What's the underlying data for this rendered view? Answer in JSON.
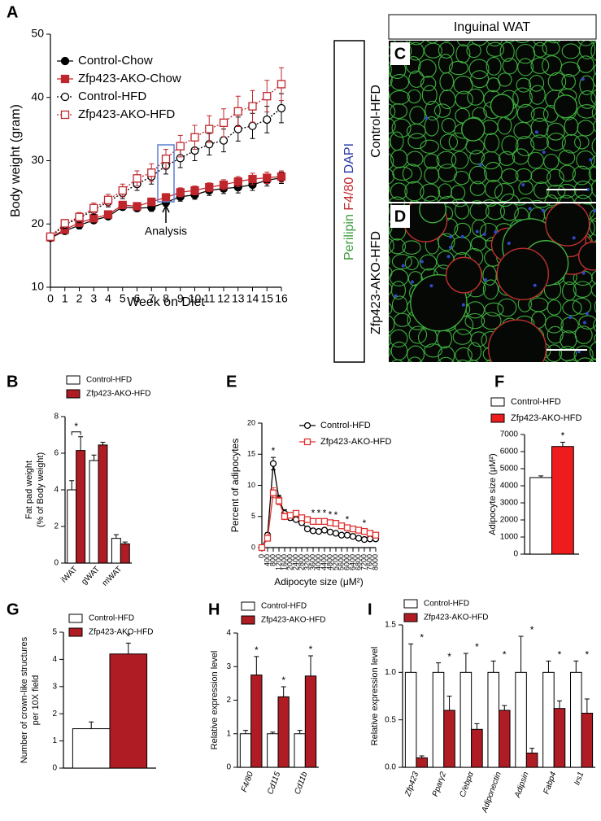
{
  "chart_data": [
    {
      "panel": "A",
      "type": "line",
      "xlabel": "Week on Diet",
      "ylabel": "Body weight (gram)",
      "x": [
        0,
        1,
        2,
        3,
        4,
        5,
        6,
        7,
        8,
        9,
        10,
        11,
        12,
        13,
        14,
        15,
        16
      ],
      "xlim": [
        0,
        16
      ],
      "xticks": [
        0,
        1,
        2,
        3,
        4,
        5,
        6,
        7,
        8,
        9,
        10,
        11,
        12,
        13,
        14,
        15,
        16
      ],
      "ylim": [
        10,
        50
      ],
      "yticks": [
        10,
        20,
        30,
        40,
        50
      ],
      "series": [
        {
          "name": "Control-Chow",
          "color": "#000000",
          "marker": "circle",
          "filled": true,
          "dashed": false,
          "values": [
            17.8,
            18.9,
            19.8,
            20.6,
            21.2,
            22.7,
            22.5,
            22.6,
            23.4,
            24.3,
            24.6,
            25.3,
            25.6,
            25.8,
            26.2,
            26.9,
            27.3
          ],
          "errors": [
            0.4,
            0.5,
            0.6,
            0.5,
            0.5,
            0.5,
            0.5,
            0.6,
            0.6,
            0.7,
            0.7,
            0.8,
            0.8,
            0.9,
            0.9,
            0.9,
            0.9
          ]
        },
        {
          "name": "Zfp423-AKO-Chow",
          "color": "#c0272d",
          "marker": "square",
          "filled": true,
          "dashed": false,
          "values": [
            17.9,
            19.1,
            20.2,
            20.9,
            21.5,
            23.0,
            22.8,
            23.5,
            24.2,
            25.0,
            25.3,
            25.8,
            26.2,
            26.7,
            27.1,
            27.3,
            27.5
          ],
          "errors": [
            0.4,
            0.5,
            0.6,
            0.5,
            0.5,
            0.5,
            0.5,
            0.6,
            0.6,
            0.7,
            0.7,
            0.7,
            0.8,
            0.8,
            0.9,
            0.9,
            0.9
          ]
        },
        {
          "name": "Control-HFD",
          "color": "#000000",
          "marker": "circle",
          "filled": false,
          "dashed": true,
          "values": [
            17.9,
            19.9,
            20.9,
            22.2,
            23.5,
            24.9,
            26.3,
            27.5,
            29.2,
            30.4,
            31.6,
            32.6,
            33.2,
            35.0,
            35.5,
            36.5,
            38.3
          ],
          "errors": [
            0.5,
            0.6,
            0.7,
            0.7,
            0.8,
            0.9,
            1.0,
            1.2,
            1.3,
            1.5,
            1.6,
            1.7,
            1.8,
            1.9,
            2.0,
            2.1,
            2.3
          ]
        },
        {
          "name": "Zfp423-AKO-HFD",
          "color": "#c0272d",
          "marker": "square",
          "filled": false,
          "dashed": true,
          "values": [
            18.0,
            20.1,
            21.1,
            22.5,
            23.8,
            25.3,
            27.2,
            28.1,
            30.3,
            32.3,
            33.7,
            35.0,
            36.0,
            37.8,
            38.6,
            40.2,
            42.1
          ],
          "errors": [
            0.5,
            0.6,
            0.7,
            0.8,
            0.9,
            1.0,
            1.2,
            1.4,
            1.5,
            1.7,
            1.9,
            2.1,
            2.2,
            2.4,
            2.5,
            2.5,
            2.6
          ]
        }
      ],
      "annotation": {
        "text": "Analysis",
        "x": 8
      }
    },
    {
      "panel": "B",
      "type": "bar",
      "ylabel": [
        "Fat pad weight",
        "(% of Body weight)"
      ],
      "categories": [
        "iWAT",
        "gWAT",
        "mWAT"
      ],
      "ylim": [
        0,
        8
      ],
      "yticks": [
        0,
        2,
        4,
        6,
        8
      ],
      "series": [
        {
          "name": "Control-HFD",
          "color": "#ffffff",
          "values": [
            4.0,
            5.6,
            1.35
          ],
          "errors": [
            0.5,
            0.3,
            0.2
          ]
        },
        {
          "name": "Zfp423-AKO-HFD",
          "color": "#b01c24",
          "values": [
            6.15,
            6.45,
            1.05
          ],
          "errors": [
            0.75,
            0.15,
            0.1
          ]
        }
      ],
      "significance": [
        "*",
        null,
        null
      ]
    },
    {
      "panel": "E",
      "type": "line",
      "xlabel": "Adipocyte size (μM²)",
      "ylabel": "Percent of adipocytes",
      "x": [
        0,
        400,
        800,
        1200,
        1600,
        2000,
        2400,
        2800,
        3200,
        3600,
        4000,
        4400,
        4800,
        5200,
        5600,
        6000,
        6400,
        6800,
        7200,
        7600,
        8000
      ],
      "xlim": [
        0,
        8000
      ],
      "xticks": [
        0,
        400,
        800,
        1200,
        1600,
        2000,
        2400,
        2800,
        3200,
        3600,
        4000,
        4400,
        4800,
        5200,
        5600,
        6000,
        6400,
        6800,
        7200,
        7600,
        8000
      ],
      "ylim": [
        0,
        20
      ],
      "yticks": [
        0,
        5,
        10,
        15,
        20
      ],
      "series": [
        {
          "name": "Control-HFD",
          "color": "#000000",
          "marker": "circle",
          "filled": false,
          "dashed": false,
          "values": [
            0,
            2,
            13.5,
            7.8,
            5.5,
            4.8,
            4.5,
            4.0,
            3.0,
            2.7,
            2.6,
            2.8,
            2.5,
            2.3,
            2.0,
            2.0,
            1.8,
            1.5,
            1.3,
            1.4,
            1.4
          ],
          "errors": [
            0,
            0.4,
            1.0,
            0.6,
            0.6,
            0.4,
            0.3,
            0.3,
            0.3,
            0.3,
            0.3,
            0.3,
            0.3,
            0.3,
            0.3,
            0.3,
            0.3,
            0.3,
            0.3,
            0.3,
            0.3
          ]
        },
        {
          "name": "Zfp423-AKO-HFD",
          "color": "#e0302e",
          "marker": "square",
          "filled": false,
          "dashed": false,
          "values": [
            0,
            1.5,
            8.8,
            7.5,
            5.0,
            5.2,
            5.5,
            4.8,
            4.5,
            4.2,
            4.2,
            4.2,
            4.0,
            3.9,
            3.5,
            3.2,
            3.0,
            2.8,
            2.6,
            2.3,
            2.0
          ],
          "errors": [
            0,
            0.4,
            0.8,
            0.6,
            0.5,
            0.4,
            0.3,
            0.3,
            0.3,
            0.3,
            0.3,
            0.3,
            0.3,
            0.3,
            0.3,
            0.3,
            0.3,
            0.3,
            0.3,
            0.3,
            0.3
          ]
        }
      ],
      "significance": [
        {
          "x": 800,
          "label": "*"
        },
        {
          "x": 3600,
          "label": "*"
        },
        {
          "x": 4000,
          "label": "*"
        },
        {
          "x": 4400,
          "label": "*"
        },
        {
          "x": 4800,
          "label": "*"
        },
        {
          "x": 5200,
          "label": "*"
        },
        {
          "x": 6000,
          "label": "*"
        },
        {
          "x": 7200,
          "label": "*"
        }
      ]
    },
    {
      "panel": "F",
      "type": "bar",
      "ylabel": "Adipocyte size (μM²)",
      "categories": [
        null
      ],
      "ylim": [
        0,
        7000
      ],
      "yticks": [
        0,
        1000,
        2000,
        3000,
        4000,
        5000,
        6000,
        7000
      ],
      "series": [
        {
          "name": "Control-HFD",
          "color": "#ffffff",
          "values": [
            4480
          ],
          "errors": [
            100
          ]
        },
        {
          "name": "Zfp423-AKO-HFD",
          "color": "#ee1c1c",
          "values": [
            6300
          ],
          "errors": [
            250
          ]
        }
      ],
      "significance": [
        "*"
      ]
    },
    {
      "panel": "G",
      "type": "bar",
      "ylabel": [
        "Number of crown-like structures",
        "per 10X field"
      ],
      "categories": [
        null
      ],
      "ylim": [
        0,
        5
      ],
      "yticks": [
        0,
        1,
        2,
        3,
        4,
        5
      ],
      "series": [
        {
          "name": "Control-HFD",
          "color": "#ffffff",
          "values": [
            1.45
          ],
          "errors": [
            0.25
          ]
        },
        {
          "name": "Zfp423-AKO-HFD",
          "color": "#b01c24",
          "values": [
            4.2
          ],
          "errors": [
            0.4
          ]
        }
      ],
      "significance": [
        "*"
      ]
    },
    {
      "panel": "H",
      "type": "bar",
      "ylabel": "Relative expression level",
      "categories": [
        "F4/80",
        "Cd115",
        "Cd11b"
      ],
      "ylim": [
        0,
        4
      ],
      "yticks": [
        0,
        1,
        2,
        3,
        4
      ],
      "series": [
        {
          "name": "Control-HFD",
          "color": "#ffffff",
          "values": [
            1.0,
            1.0,
            1.0
          ],
          "errors": [
            0.1,
            0.05,
            0.1
          ]
        },
        {
          "name": "Zfp423-AKO-HFD",
          "color": "#b01c24",
          "values": [
            2.75,
            2.1,
            2.72
          ],
          "errors": [
            0.55,
            0.3,
            0.6
          ]
        }
      ],
      "significance": [
        "*",
        "*",
        "*"
      ]
    },
    {
      "panel": "I",
      "type": "bar",
      "ylabel": "Relative expression level",
      "categories": [
        "Zfp423",
        "Pparγ2",
        "C/ebpα",
        "Adiponectin",
        "Adipsin",
        "Fabp4",
        "Irs1"
      ],
      "ylim": [
        0,
        1.5
      ],
      "yticks": [
        {
          "value": 0,
          "label": "0.0"
        },
        0.5,
        {
          "value": 1,
          "label": "1.0"
        },
        1.5
      ],
      "series": [
        {
          "name": "Control-HFD",
          "color": "#ffffff",
          "values": [
            1.0,
            1.0,
            1.0,
            1.0,
            1.0,
            1.0,
            1.0
          ],
          "errors": [
            0.3,
            0.1,
            0.2,
            0.12,
            0.38,
            0.12,
            0.12
          ]
        },
        {
          "name": "Zfp423-AKO-HFD",
          "color": "#b01c24",
          "values": [
            0.1,
            0.6,
            0.4,
            0.6,
            0.15,
            0.62,
            0.57
          ],
          "errors": [
            0.02,
            0.15,
            0.06,
            0.05,
            0.05,
            0.08,
            0.15
          ]
        }
      ],
      "significance": [
        "*",
        "*",
        "*",
        "*",
        "*",
        "*",
        "*"
      ]
    }
  ],
  "images": {
    "header": "Inguinal WAT",
    "stain": [
      {
        "text": "Perilipin",
        "color": "#3a9a3a"
      },
      {
        "text": "F4/80",
        "color": "#c0272d"
      },
      {
        "text": "DAPI",
        "color": "#2a3aa8"
      }
    ],
    "panels": [
      {
        "letter": "C",
        "label": "Control-HFD"
      },
      {
        "letter": "D",
        "label": "Zfp423-AKO-HFD"
      }
    ]
  }
}
